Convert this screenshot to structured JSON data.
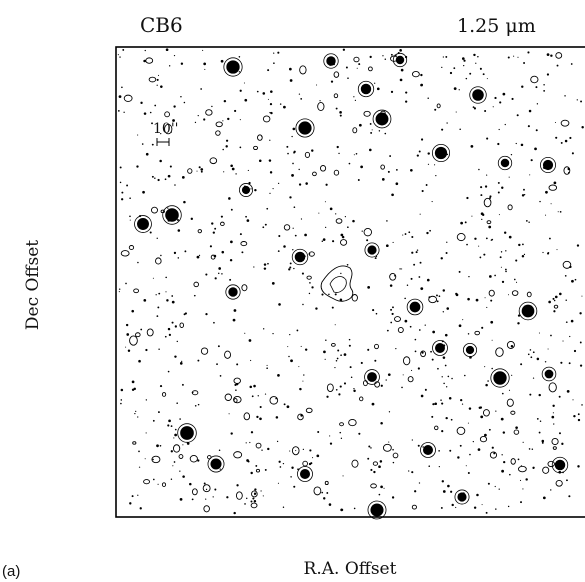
{
  "figure": {
    "panel_label": "(a)",
    "object": "CB6",
    "wavelength": "1.25 μm",
    "y_label": "Dec Offset",
    "x_label": "R.A. Offset",
    "scale_bar": "10''"
  }
}
